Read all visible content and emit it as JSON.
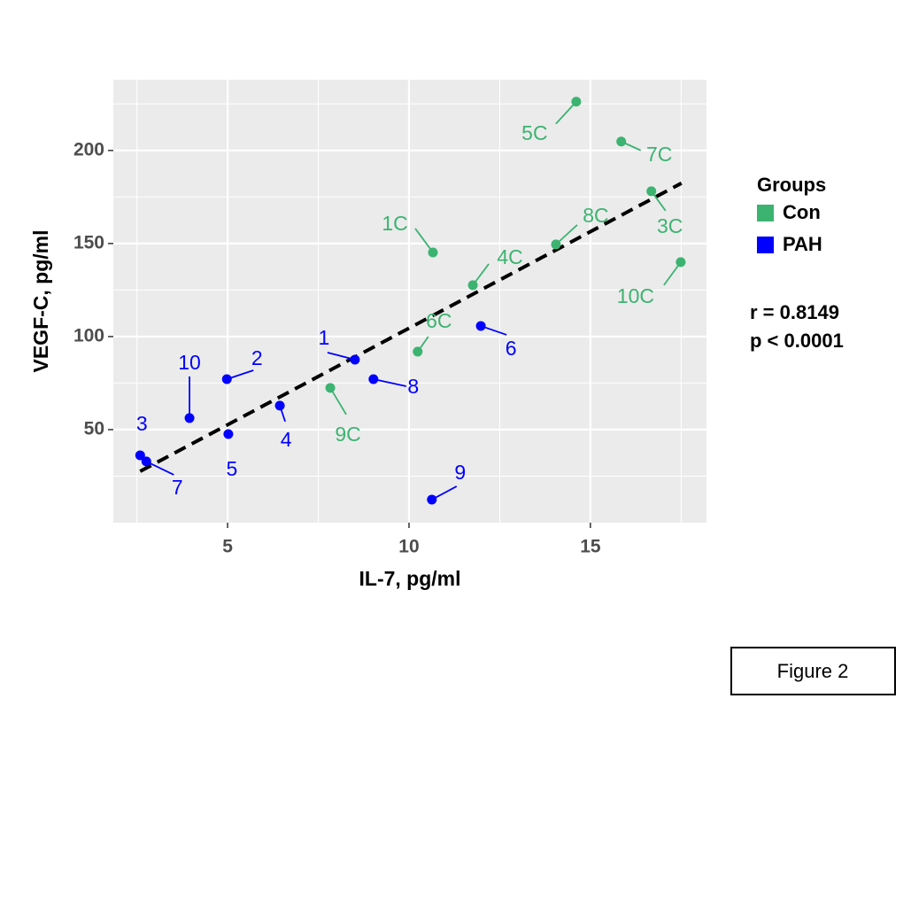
{
  "chart_data": {
    "type": "scatter",
    "x_label": "IL-7, pg/ml",
    "y_label": "VEGF-C, pg/ml",
    "xlim": [
      1.85,
      18.2
    ],
    "ylim": [
      0,
      238
    ],
    "xticks": [
      5,
      10,
      15
    ],
    "yticks": [
      50,
      100,
      150,
      200
    ],
    "x_minor_ticks": [
      2.5,
      7.5,
      12.5,
      17.5
    ],
    "y_minor_ticks": [
      25,
      75,
      125,
      175,
      225
    ],
    "grid": true,
    "legend_title": "Groups",
    "legend_position": "right",
    "series": [
      {
        "name": "Con",
        "color": "#3cb371",
        "labels": [
          "1C",
          "5C",
          "7C",
          "3C",
          "8C",
          "4C",
          "10C",
          "6C",
          "9C"
        ],
        "x": [
          10.66,
          14.61,
          15.85,
          16.68,
          14.05,
          11.76,
          17.49,
          10.24,
          7.83
        ],
        "values": [
          145.2,
          226.2,
          204.8,
          178.1,
          149.5,
          127.6,
          140,
          91.9,
          72.4
        ]
      },
      {
        "name": "PAH",
        "color": "#0000ff",
        "labels": [
          "1",
          "2",
          "3",
          "4",
          "5",
          "6",
          "7",
          "8",
          "9",
          "10"
        ],
        "x": [
          8.51,
          4.98,
          2.59,
          6.44,
          5.02,
          11.98,
          2.76,
          9.02,
          10.63,
          3.95
        ],
        "values": [
          87.6,
          77.1,
          36.2,
          62.9,
          47.6,
          105.7,
          32.9,
          77.1,
          12.4,
          56.2
        ]
      }
    ],
    "trend_line": {
      "x": [
        2.59,
        17.51
      ],
      "values": [
        27.6,
        182.4
      ],
      "color": "#000000"
    },
    "annotations": [
      "r = 0.8149",
      "p < 0.0001"
    ],
    "figure_label": "Figure 2"
  }
}
